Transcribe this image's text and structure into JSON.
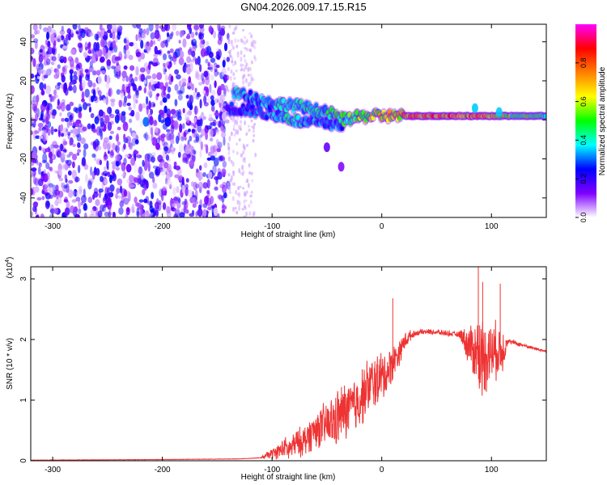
{
  "title": "GN04.2026.009.17.15.R15",
  "colors": {
    "snr_line": "#ee3333",
    "frame": "#000000",
    "spectrogram_background": "#ffffff"
  },
  "chart_data": [
    {
      "type": "heatmap",
      "xlabel": "Height of straight line (km)",
      "ylabel": "Frequency (Hz)",
      "xlim": [
        -320,
        150
      ],
      "ylim": [
        -50,
        49
      ],
      "x_ticks": [
        -300,
        -200,
        -100,
        0,
        100
      ],
      "x_tick_labels": [
        "-300",
        "-200",
        "-100",
        "0",
        "100"
      ],
      "y_ticks": [
        -40,
        -20,
        0,
        20,
        40
      ],
      "y_tick_labels": [
        "-40",
        "-20",
        "0",
        "20",
        "40"
      ],
      "grid": false,
      "colorbar": {
        "label": "Normalized spectral amplitude",
        "range": [
          0,
          1
        ],
        "ticks": [
          0.0,
          0.2,
          0.4,
          0.6,
          0.8
        ],
        "tick_labels": [
          "0.0",
          "0.2",
          "0.4",
          "0.6",
          "0.8"
        ],
        "colormap": [
          "#ffffff",
          "#7f00ff",
          "#0000ff",
          "#00ffff",
          "#00ff00",
          "#ffff00",
          "#ff7f00",
          "#ff0000",
          "#ff00ff"
        ]
      },
      "noise_region": {
        "x_range": [
          -320,
          -140
        ],
        "y_range": [
          -50,
          49
        ],
        "amplitude": 0.15
      },
      "signal_track": [
        {
          "x": -135,
          "y": 14,
          "amp": 0.45
        },
        {
          "x": -120,
          "y": 12,
          "amp": 0.4
        },
        {
          "x": -105,
          "y": 9,
          "amp": 0.4
        },
        {
          "x": -90,
          "y": 8,
          "amp": 0.45
        },
        {
          "x": -75,
          "y": 7,
          "amp": 0.45
        },
        {
          "x": -60,
          "y": 5,
          "amp": 0.45
        },
        {
          "x": -45,
          "y": 3,
          "amp": 0.5
        },
        {
          "x": -35,
          "y": 0,
          "amp": 0.6
        },
        {
          "x": -25,
          "y": 1,
          "amp": 0.65
        },
        {
          "x": -10,
          "y": 2,
          "amp": 0.7
        },
        {
          "x": 0,
          "y": 2,
          "amp": 0.75
        },
        {
          "x": 20,
          "y": 2,
          "amp": 0.85
        },
        {
          "x": 40,
          "y": 2,
          "amp": 0.9
        },
        {
          "x": 60,
          "y": 2,
          "amp": 0.95
        },
        {
          "x": 80,
          "y": 2,
          "amp": 0.9
        },
        {
          "x": 100,
          "y": 2,
          "amp": 0.8
        },
        {
          "x": 120,
          "y": 2,
          "amp": 0.6
        },
        {
          "x": 150,
          "y": 2,
          "amp": 0.55
        }
      ],
      "lower_branch": [
        {
          "x": -140,
          "y": 6,
          "amp": 0.3
        },
        {
          "x": -120,
          "y": 5,
          "amp": 0.35
        },
        {
          "x": -100,
          "y": 3,
          "amp": 0.4
        },
        {
          "x": -85,
          "y": 1,
          "amp": 0.5
        },
        {
          "x": -70,
          "y": -2,
          "amp": 0.45
        },
        {
          "x": -55,
          "y": 0,
          "amp": 0.4
        },
        {
          "x": -45,
          "y": -3,
          "amp": 0.35
        },
        {
          "x": -35,
          "y": -2,
          "amp": 0.4
        }
      ],
      "isolated_blobs": [
        {
          "x": -215,
          "y": -1,
          "amp": 0.3
        },
        {
          "x": -195,
          "y": -1,
          "amp": 0.25
        },
        {
          "x": -50,
          "y": -14,
          "amp": 0.15
        },
        {
          "x": -37,
          "y": -24,
          "amp": 0.12
        },
        {
          "x": 85,
          "y": 6,
          "amp": 0.35
        },
        {
          "x": 107,
          "y": 4,
          "amp": 0.35
        }
      ]
    },
    {
      "type": "line",
      "xlabel": "Height of straight line (km)",
      "ylabel": "SNR (10 * v/v)",
      "y_scale_label": "(x10",
      "y_scale_exponent": "4",
      "y_scale_close": ")",
      "xlim": [
        -320,
        150
      ],
      "ylim": [
        0,
        3.2
      ],
      "x_ticks": [
        -300,
        -200,
        -100,
        0,
        100
      ],
      "x_tick_labels": [
        "-300",
        "-200",
        "-100",
        "0",
        "100"
      ],
      "y_ticks": [
        0,
        1,
        2,
        3
      ],
      "y_tick_labels": [
        "0",
        "1",
        "2",
        "3"
      ],
      "grid": false,
      "legend": "none",
      "series": [
        {
          "x": [
            -320,
            -200,
            -130,
            -110,
            -100,
            -95,
            -90,
            -85,
            -80,
            -75,
            -70,
            -65,
            -60,
            -55,
            -50,
            -45,
            -40,
            -35,
            -30,
            -25,
            -20,
            -15,
            -10,
            -5,
            0,
            5,
            10,
            15,
            20,
            25,
            30,
            35,
            40,
            50,
            60,
            70,
            75,
            80,
            85,
            90,
            95,
            100,
            105,
            110,
            115,
            120,
            130,
            140,
            150
          ],
          "values": [
            0.01,
            0.02,
            0.03,
            0.05,
            0.12,
            0.15,
            0.2,
            0.25,
            0.35,
            0.4,
            0.45,
            0.55,
            0.65,
            0.7,
            0.75,
            0.8,
            0.9,
            1.0,
            1.05,
            1.1,
            1.2,
            1.35,
            1.45,
            1.5,
            1.55,
            1.6,
            1.75,
            1.85,
            1.95,
            2.05,
            2.1,
            2.12,
            2.13,
            2.12,
            2.1,
            2.08,
            2.06,
            2.05,
            2.02,
            2.0,
            2.0,
            2.0,
            2.0,
            1.98,
            1.97,
            1.95,
            1.9,
            1.85,
            1.8
          ],
          "noise_envelope": [
            {
              "x": -110,
              "amp": 0.02
            },
            {
              "x": -100,
              "amp": 0.1
            },
            {
              "x": -80,
              "amp": 0.25
            },
            {
              "x": -60,
              "amp": 0.35
            },
            {
              "x": -40,
              "amp": 0.55
            },
            {
              "x": -20,
              "amp": 0.55
            },
            {
              "x": 0,
              "amp": 0.5
            },
            {
              "x": 15,
              "amp": 0.25
            },
            {
              "x": 30,
              "amp": 0.05
            },
            {
              "x": 70,
              "amp": 0.05
            },
            {
              "x": 80,
              "amp": 0.4
            },
            {
              "x": 90,
              "amp": 0.8
            },
            {
              "x": 100,
              "amp": 0.6
            },
            {
              "x": 110,
              "amp": 0.45
            },
            {
              "x": 115,
              "amp": 0.05
            },
            {
              "x": 150,
              "amp": 0.02
            }
          ],
          "spikes": [
            {
              "x": 10,
              "y": 2.68
            },
            {
              "x": 88,
              "y": 3.2
            },
            {
              "x": 92,
              "y": 2.95
            },
            {
              "x": 108,
              "y": 2.92
            }
          ]
        }
      ]
    }
  ]
}
